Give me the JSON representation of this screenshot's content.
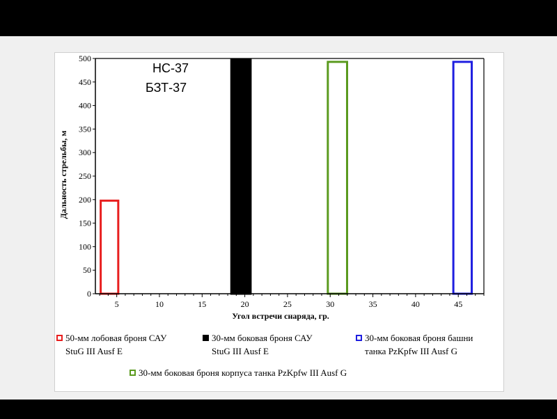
{
  "chart_data": {
    "type": "bar",
    "annotation_lines": [
      "НС-37",
      "БЗТ-37"
    ],
    "xlabel": "Угол   встречи снаряда, гр.",
    "ylabel": "Дальность стрельбы, м",
    "xlim": [
      2.5,
      48
    ],
    "ylim": [
      0,
      500
    ],
    "x_ticks": [
      5,
      10,
      15,
      20,
      25,
      30,
      35,
      40,
      45
    ],
    "y_ticks": [
      0,
      50,
      100,
      150,
      200,
      250,
      300,
      350,
      400,
      450,
      500
    ],
    "grid": false,
    "legend_position": "bottom",
    "series": [
      {
        "name": "50-мм лобовая броня САУ StuG III Ausf E",
        "legend_line1": "50-мм лобовая броня САУ",
        "legend_line2": "StuG III Ausf E",
        "color": "#e81e1e",
        "filled": false,
        "x_start": 3,
        "x_end": 5.3,
        "value": 200
      },
      {
        "name": "30-мм боковая броня САУ StuG III Ausf E",
        "legend_line1": "30-мм боковая броня САУ",
        "legend_line2": "StuG III Ausf E",
        "color": "#000000",
        "filled": true,
        "x_start": 18.3,
        "x_end": 20.8,
        "value": 500
      },
      {
        "name": "30-мм боковая броня башни танка PzKpfw III Ausf G",
        "legend_line1": "30-мм боковая броня башни",
        "legend_line2": "танка PzKpfw III Ausf G",
        "color": "#1e1ee0",
        "filled": false,
        "x_start": 44.3,
        "x_end": 46.7,
        "value": 495
      },
      {
        "name": "30-мм боковая броня  корпуса танка PzKpfw III   Ausf G",
        "legend_line1": "30-мм боковая броня  корпуса танка PzKpfw III   Ausf G",
        "legend_line2": "",
        "color": "#5a9a1e",
        "filled": false,
        "x_start": 29.6,
        "x_end": 32.1,
        "value": 495
      }
    ]
  }
}
